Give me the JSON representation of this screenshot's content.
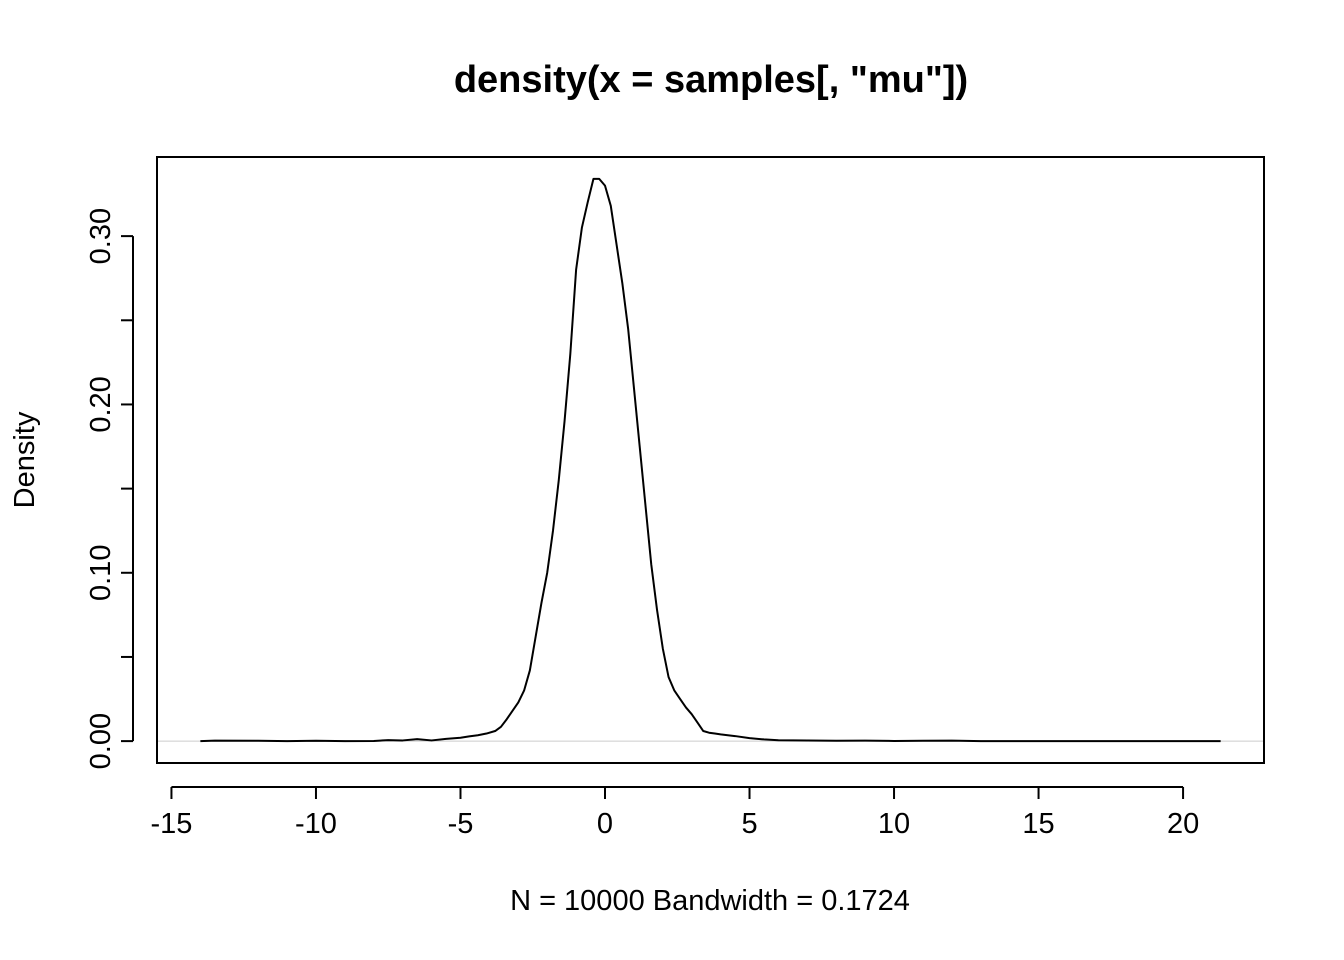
{
  "chart_data": {
    "type": "line",
    "title": "density(x = samples[, \"mu\"])",
    "xlabel": "N = 10000   Bandwidth = 0.1724",
    "ylabel": "Density",
    "xlim": [
      -15.5,
      22.8
    ],
    "ylim": [
      -0.013,
      0.347
    ],
    "x_ticks": [
      -15,
      -10,
      -5,
      0,
      5,
      10,
      15,
      20
    ],
    "x_tick_labels": [
      "-15",
      "-10",
      "-5",
      "0",
      "5",
      "10",
      "15",
      "20"
    ],
    "y_ticks": [
      0.0,
      0.05,
      0.1,
      0.15,
      0.2,
      0.25,
      0.3
    ],
    "y_tick_labels": [
      "0.00",
      "",
      "0.10",
      "",
      "0.20",
      "",
      "0.30"
    ],
    "zero_line": true,
    "grid": false,
    "legend": "none",
    "line_color": "#000000",
    "zero_line_color": "#cccccc",
    "series": [
      {
        "x": [
          -14.0,
          -13.5,
          -12.0,
          -11.0,
          -10.0,
          -9.0,
          -8.0,
          -7.5,
          -7.0,
          -6.5,
          -6.0,
          -5.5,
          -5.0,
          -4.7,
          -4.4,
          -4.1,
          -3.8,
          -3.6,
          -3.4,
          -3.2,
          -3.0,
          -2.8,
          -2.6,
          -2.4,
          -2.2,
          -2.0,
          -1.8,
          -1.6,
          -1.4,
          -1.2,
          -1.0,
          -0.8,
          -0.6,
          -0.4,
          -0.2,
          0.0,
          0.2,
          0.4,
          0.6,
          0.8,
          1.0,
          1.2,
          1.4,
          1.6,
          1.8,
          2.0,
          2.2,
          2.4,
          2.6,
          2.8,
          3.0,
          3.2,
          3.4,
          3.6,
          3.8,
          4.0,
          4.5,
          5.0,
          5.5,
          6.0,
          7.0,
          8.0,
          9.0,
          10.0,
          11.0,
          12.0,
          13.0,
          15.0,
          17.0,
          19.0,
          21.3
        ],
        "y": [
          0.0,
          0.0003,
          0.0002,
          0.0,
          0.0002,
          0.0,
          0.0001,
          0.0006,
          0.0004,
          0.0012,
          0.0004,
          0.0013,
          0.002,
          0.0028,
          0.0035,
          0.0045,
          0.006,
          0.0085,
          0.013,
          0.018,
          0.023,
          0.03,
          0.042,
          0.062,
          0.082,
          0.1,
          0.125,
          0.155,
          0.19,
          0.23,
          0.28,
          0.305,
          0.32,
          0.334,
          0.334,
          0.33,
          0.318,
          0.295,
          0.272,
          0.245,
          0.21,
          0.175,
          0.14,
          0.105,
          0.078,
          0.055,
          0.038,
          0.03,
          0.025,
          0.02,
          0.016,
          0.011,
          0.006,
          0.005,
          0.0045,
          0.004,
          0.003,
          0.0018,
          0.001,
          0.0005,
          0.0004,
          0.0002,
          0.0003,
          0.0001,
          0.0002,
          0.0003,
          0.0,
          0.0,
          0.0,
          0.0,
          0.0
        ]
      }
    ]
  }
}
